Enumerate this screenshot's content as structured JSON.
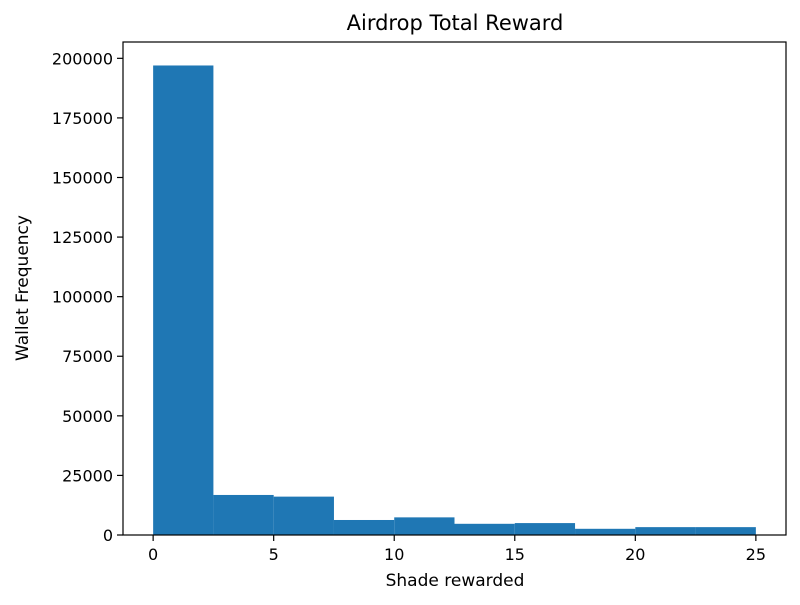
{
  "chart_data": {
    "type": "bar",
    "title": "Airdrop Total Reward",
    "xlabel": "Shade rewarded",
    "ylabel": "Wallet Frequency",
    "bins": [
      {
        "x0": 0,
        "x1": 2.5,
        "value": 197000
      },
      {
        "x0": 2.5,
        "x1": 5,
        "value": 16800
      },
      {
        "x0": 5,
        "x1": 7.5,
        "value": 16100
      },
      {
        "x0": 7.5,
        "x1": 10,
        "value": 6300
      },
      {
        "x0": 10,
        "x1": 12.5,
        "value": 7400
      },
      {
        "x0": 12.5,
        "x1": 15,
        "value": 4700
      },
      {
        "x0": 15,
        "x1": 17.5,
        "value": 5000
      },
      {
        "x0": 17.5,
        "x1": 20,
        "value": 2600
      },
      {
        "x0": 20,
        "x1": 22.5,
        "value": 3300
      },
      {
        "x0": 22.5,
        "x1": 25,
        "value": 3300
      }
    ],
    "xticks": [
      0,
      5,
      10,
      15,
      20,
      25
    ],
    "yticks": [
      0,
      25000,
      50000,
      75000,
      100000,
      125000,
      150000,
      175000,
      200000
    ],
    "xlim": [
      -1.25,
      26.25
    ],
    "ylim": [
      0,
      206850
    ],
    "bar_color": "#1f77b4",
    "grid": false,
    "legend": "none"
  }
}
